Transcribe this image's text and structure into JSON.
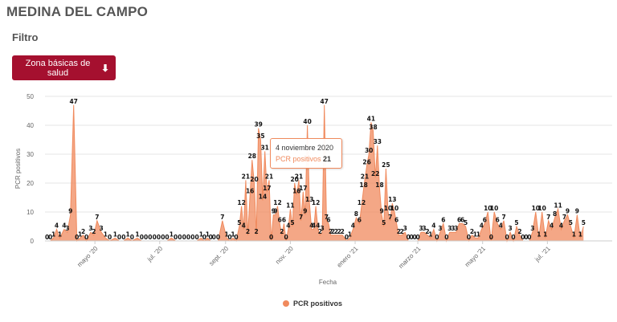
{
  "page": {
    "title": "MEDINA DEL CAMPO",
    "filter_label": "Filtro",
    "zone_button_label": "Zona básicas de salud",
    "zone_button_icon": "arrow-down-icon"
  },
  "colors": {
    "series": "#f08a5d",
    "button": "#a5102f",
    "grid": "#e6e6e6"
  },
  "tooltip": {
    "date": "4 noviembre 2020",
    "series_name": "PCR positivos",
    "value": "21"
  },
  "chart_data": {
    "type": "area",
    "title": "",
    "xlabel": "Fecha",
    "ylabel": "PCR positivos",
    "ylim": [
      0,
      50
    ],
    "xlim": [
      "2020-03-15",
      "2021-08-31"
    ],
    "y_ticks": [
      0,
      10,
      20,
      30,
      40,
      50
    ],
    "x_ticks": [
      {
        "date": "2020-05-01",
        "label": "mayo '20"
      },
      {
        "date": "2020-07-01",
        "label": "jul. '20"
      },
      {
        "date": "2020-09-01",
        "label": "sept. '20"
      },
      {
        "date": "2020-11-01",
        "label": "nov. '20"
      },
      {
        "date": "2021-01-01",
        "label": "enero '21"
      },
      {
        "date": "2021-03-01",
        "label": "marzo '21"
      },
      {
        "date": "2021-05-01",
        "label": "mayo '21"
      },
      {
        "date": "2021-07-01",
        "label": "jul. '21"
      }
    ],
    "grid": true,
    "legend": {
      "position": "bottom-center",
      "label": "PCR positivos"
    },
    "series": [
      {
        "name": "PCR positivos",
        "points": [
          [
            "2020-03-17",
            0
          ],
          [
            "2020-03-20",
            0
          ],
          [
            "2020-03-23",
            1
          ],
          [
            "2020-03-26",
            4
          ],
          [
            "2020-03-29",
            1
          ],
          [
            "2020-04-02",
            4
          ],
          [
            "2020-04-05",
            3
          ],
          [
            "2020-04-08",
            9
          ],
          [
            "2020-04-11",
            47
          ],
          [
            "2020-04-14",
            0
          ],
          [
            "2020-04-17",
            1
          ],
          [
            "2020-04-20",
            2
          ],
          [
            "2020-04-23",
            0
          ],
          [
            "2020-04-27",
            3
          ],
          [
            "2020-04-30",
            2
          ],
          [
            "2020-05-03",
            7
          ],
          [
            "2020-05-07",
            3
          ],
          [
            "2020-05-11",
            1
          ],
          [
            "2020-05-15",
            0
          ],
          [
            "2020-05-20",
            1
          ],
          [
            "2020-05-24",
            0
          ],
          [
            "2020-05-28",
            0
          ],
          [
            "2020-06-01",
            1
          ],
          [
            "2020-06-05",
            0
          ],
          [
            "2020-06-10",
            1
          ],
          [
            "2020-06-14",
            0
          ],
          [
            "2020-06-18",
            0
          ],
          [
            "2020-06-22",
            0
          ],
          [
            "2020-06-26",
            0
          ],
          [
            "2020-06-30",
            0
          ],
          [
            "2020-07-04",
            0
          ],
          [
            "2020-07-08",
            0
          ],
          [
            "2020-07-12",
            1
          ],
          [
            "2020-07-16",
            0
          ],
          [
            "2020-07-20",
            0
          ],
          [
            "2020-07-24",
            0
          ],
          [
            "2020-07-28",
            0
          ],
          [
            "2020-08-01",
            0
          ],
          [
            "2020-08-05",
            0
          ],
          [
            "2020-08-09",
            1
          ],
          [
            "2020-08-12",
            0
          ],
          [
            "2020-08-15",
            1
          ],
          [
            "2020-08-18",
            0
          ],
          [
            "2020-08-21",
            0
          ],
          [
            "2020-08-25",
            0
          ],
          [
            "2020-08-29",
            7
          ],
          [
            "2020-09-02",
            1
          ],
          [
            "2020-09-05",
            0
          ],
          [
            "2020-09-08",
            1
          ],
          [
            "2020-09-11",
            0
          ],
          [
            "2020-09-14",
            5
          ],
          [
            "2020-09-16",
            12
          ],
          [
            "2020-09-18",
            4
          ],
          [
            "2020-09-20",
            21
          ],
          [
            "2020-09-22",
            2
          ],
          [
            "2020-09-24",
            16
          ],
          [
            "2020-09-26",
            28
          ],
          [
            "2020-09-28",
            20
          ],
          [
            "2020-09-30",
            2
          ],
          [
            "2020-10-02",
            39
          ],
          [
            "2020-10-04",
            35
          ],
          [
            "2020-10-06",
            14
          ],
          [
            "2020-10-08",
            31
          ],
          [
            "2020-10-10",
            17
          ],
          [
            "2020-10-12",
            21
          ],
          [
            "2020-10-14",
            0
          ],
          [
            "2020-10-16",
            9
          ],
          [
            "2020-10-18",
            9
          ],
          [
            "2020-10-20",
            12
          ],
          [
            "2020-10-22",
            6
          ],
          [
            "2020-10-24",
            2
          ],
          [
            "2020-10-26",
            6
          ],
          [
            "2020-10-28",
            0
          ],
          [
            "2020-10-30",
            4
          ],
          [
            "2020-11-01",
            11
          ],
          [
            "2020-11-03",
            5
          ],
          [
            "2020-11-05",
            20
          ],
          [
            "2020-11-07",
            16
          ],
          [
            "2020-11-09",
            21
          ],
          [
            "2020-11-11",
            7
          ],
          [
            "2020-11-13",
            17
          ],
          [
            "2020-11-15",
            9
          ],
          [
            "2020-11-17",
            40
          ],
          [
            "2020-11-19",
            13
          ],
          [
            "2020-11-21",
            4
          ],
          [
            "2020-11-23",
            4
          ],
          [
            "2020-11-25",
            12
          ],
          [
            "2020-11-27",
            4
          ],
          [
            "2020-11-29",
            2
          ],
          [
            "2020-12-01",
            3
          ],
          [
            "2020-12-03",
            47
          ],
          [
            "2020-12-05",
            7
          ],
          [
            "2020-12-07",
            6
          ],
          [
            "2020-12-09",
            2
          ],
          [
            "2020-12-11",
            2
          ],
          [
            "2020-12-14",
            2
          ],
          [
            "2020-12-17",
            2
          ],
          [
            "2020-12-20",
            2
          ],
          [
            "2020-12-24",
            0
          ],
          [
            "2020-12-27",
            1
          ],
          [
            "2020-12-30",
            4
          ],
          [
            "2021-01-02",
            8
          ],
          [
            "2021-01-05",
            6
          ],
          [
            "2021-01-07",
            12
          ],
          [
            "2021-01-09",
            18
          ],
          [
            "2021-01-10",
            21
          ],
          [
            "2021-01-12",
            26
          ],
          [
            "2021-01-14",
            30
          ],
          [
            "2021-01-16",
            41
          ],
          [
            "2021-01-18",
            38
          ],
          [
            "2021-01-20",
            22
          ],
          [
            "2021-01-22",
            33
          ],
          [
            "2021-01-24",
            18
          ],
          [
            "2021-01-26",
            9
          ],
          [
            "2021-01-28",
            5
          ],
          [
            "2021-01-30",
            25
          ],
          [
            "2021-02-01",
            10
          ],
          [
            "2021-02-03",
            7
          ],
          [
            "2021-02-05",
            13
          ],
          [
            "2021-02-07",
            10
          ],
          [
            "2021-02-09",
            6
          ],
          [
            "2021-02-11",
            2
          ],
          [
            "2021-02-14",
            2
          ],
          [
            "2021-02-17",
            3
          ],
          [
            "2021-02-20",
            0
          ],
          [
            "2021-02-23",
            0
          ],
          [
            "2021-02-26",
            0
          ],
          [
            "2021-03-01",
            0
          ],
          [
            "2021-03-04",
            3
          ],
          [
            "2021-03-07",
            3
          ],
          [
            "2021-03-10",
            2
          ],
          [
            "2021-03-13",
            1
          ],
          [
            "2021-03-16",
            4
          ],
          [
            "2021-03-19",
            0
          ],
          [
            "2021-03-22",
            3
          ],
          [
            "2021-03-25",
            6
          ],
          [
            "2021-03-28",
            0
          ],
          [
            "2021-03-31",
            3
          ],
          [
            "2021-04-03",
            3
          ],
          [
            "2021-04-06",
            3
          ],
          [
            "2021-04-09",
            6
          ],
          [
            "2021-04-12",
            6
          ],
          [
            "2021-04-15",
            5
          ],
          [
            "2021-04-18",
            0
          ],
          [
            "2021-04-21",
            2
          ],
          [
            "2021-04-24",
            1
          ],
          [
            "2021-04-27",
            1
          ],
          [
            "2021-04-30",
            4
          ],
          [
            "2021-05-03",
            6
          ],
          [
            "2021-05-06",
            10
          ],
          [
            "2021-05-09",
            0
          ],
          [
            "2021-05-12",
            10
          ],
          [
            "2021-05-15",
            6
          ],
          [
            "2021-05-18",
            4
          ],
          [
            "2021-05-21",
            7
          ],
          [
            "2021-05-24",
            0
          ],
          [
            "2021-05-27",
            3
          ],
          [
            "2021-05-30",
            0
          ],
          [
            "2021-06-02",
            5
          ],
          [
            "2021-06-05",
            2
          ],
          [
            "2021-06-08",
            0
          ],
          [
            "2021-06-11",
            0
          ],
          [
            "2021-06-14",
            0
          ],
          [
            "2021-06-17",
            3
          ],
          [
            "2021-06-20",
            10
          ],
          [
            "2021-06-23",
            1
          ],
          [
            "2021-06-26",
            10
          ],
          [
            "2021-06-29",
            1
          ],
          [
            "2021-07-02",
            7
          ],
          [
            "2021-07-05",
            4
          ],
          [
            "2021-07-08",
            8
          ],
          [
            "2021-07-11",
            11
          ],
          [
            "2021-07-14",
            4
          ],
          [
            "2021-07-17",
            7
          ],
          [
            "2021-07-20",
            9
          ],
          [
            "2021-07-23",
            5
          ],
          [
            "2021-07-26",
            1
          ],
          [
            "2021-07-29",
            9
          ],
          [
            "2021-08-01",
            1
          ],
          [
            "2021-08-04",
            5
          ]
        ]
      }
    ]
  }
}
